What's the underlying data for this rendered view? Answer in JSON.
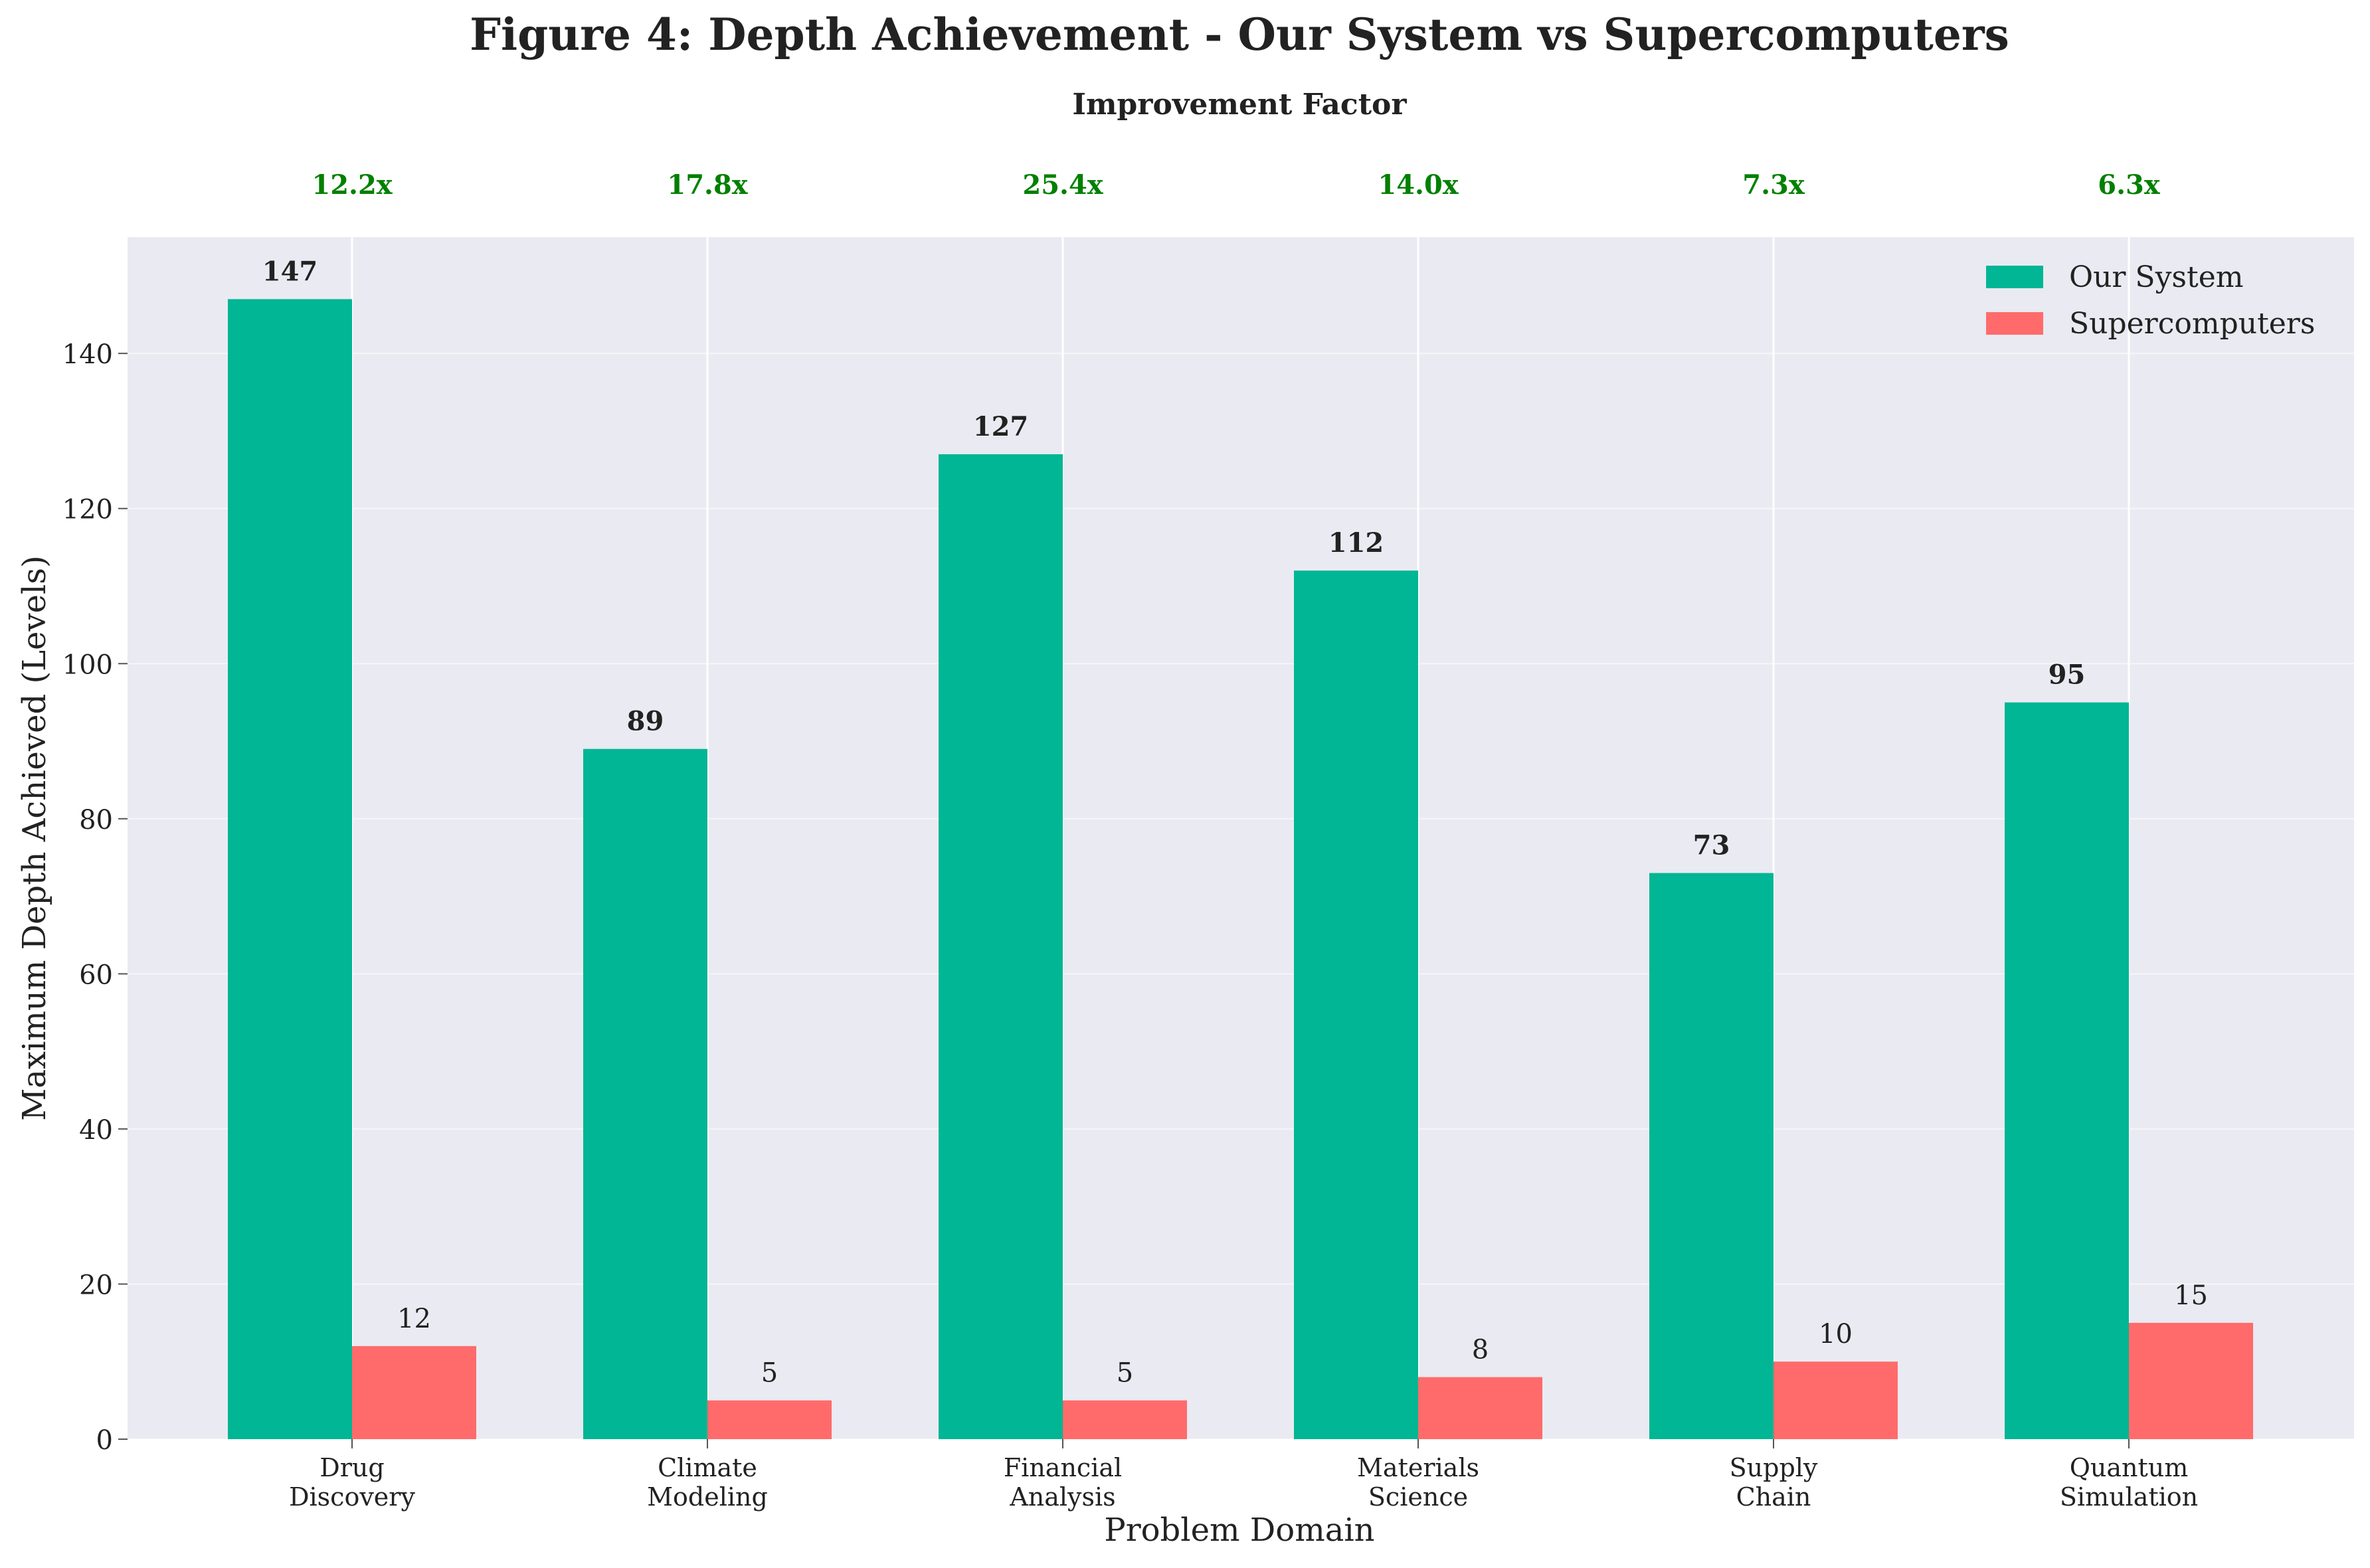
{
  "chart_data": {
    "type": "bar",
    "title": "Figure 4: Depth Achievement - Our System vs Supercomputers",
    "subtitle": "Improvement Factor",
    "xlabel": "Problem Domain",
    "ylabel": "Maximum Depth Achieved (Levels)",
    "ylim": [
      0,
      155
    ],
    "yticks": [
      0,
      20,
      40,
      60,
      80,
      100,
      120,
      140
    ],
    "categories": [
      [
        "Drug",
        "Discovery"
      ],
      [
        "Climate",
        "Modeling"
      ],
      [
        "Financial",
        "Analysis"
      ],
      [
        "Materials",
        "Science"
      ],
      [
        "Supply",
        "Chain"
      ],
      [
        "Quantum",
        "Simulation"
      ]
    ],
    "series": [
      {
        "name": "Our System",
        "color": "#00b694",
        "values": [
          147,
          89,
          127,
          112,
          73,
          95
        ]
      },
      {
        "name": "Supercomputers",
        "color": "#ff6b6b",
        "values": [
          12,
          5,
          5,
          8,
          10,
          15
        ]
      }
    ],
    "improvement_factors": [
      "12.2x",
      "17.8x",
      "25.4x",
      "14.0x",
      "7.3x",
      "6.3x"
    ],
    "improvement_color": "#008000",
    "legend_position": "top-right",
    "grid": true,
    "background_color": "#eaeaf2"
  }
}
